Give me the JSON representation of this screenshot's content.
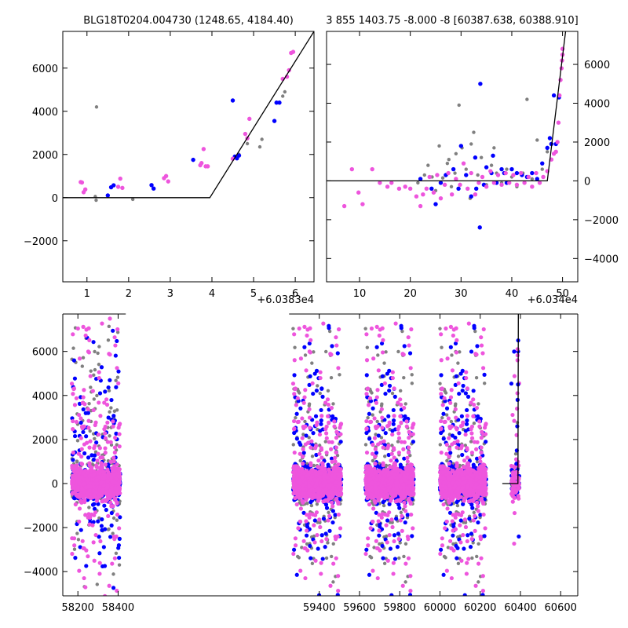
{
  "figure": {
    "panel_a_title": "BLG18T0204.004730 (1248.65, 4184.40)",
    "panel_b_title": "3 855 1403.75 -8.000 -8 [60387.638, 60388.910]",
    "panel_a_offset": "+6.0383e4",
    "panel_b_offset": "+6.034e4"
  },
  "colors": {
    "gray": "#808080",
    "blue": "#0000ff",
    "magenta": "#ee55dd",
    "model": "#000000"
  },
  "chart_data": [
    {
      "id": "panel_a",
      "type": "scatter",
      "title": "BLG18T0204.004730 (1248.65, 4184.40)",
      "x_offset_label": "+6.0383e4",
      "xlim": [
        0.42,
        6.45
      ],
      "ylim": [
        -3900,
        7700
      ],
      "xticks": [
        1,
        2,
        3,
        4,
        5,
        6
      ],
      "yticks": [
        -2000,
        0,
        2000,
        4000,
        6000
      ],
      "ytick_side": "left",
      "series": [
        {
          "color": "gray",
          "points": [
            [
              1.23,
              4200
            ],
            [
              1.2,
              50
            ],
            [
              1.22,
              -120
            ],
            [
              2.1,
              -80
            ],
            [
              4.65,
              2000
            ],
            [
              4.85,
              2500
            ],
            [
              5.2,
              2700
            ],
            [
              5.15,
              2350
            ],
            [
              5.75,
              4900
            ],
            [
              5.7,
              4700
            ]
          ]
        },
        {
          "color": "blue",
          "points": [
            [
              1.5,
              100
            ],
            [
              1.58,
              480
            ],
            [
              1.64,
              570
            ],
            [
              2.55,
              580
            ],
            [
              2.6,
              420
            ],
            [
              3.55,
              1750
            ],
            [
              4.5,
              4500
            ],
            [
              4.55,
              1900
            ],
            [
              4.65,
              1950
            ],
            [
              4.6,
              1820
            ],
            [
              5.5,
              3550
            ],
            [
              5.55,
              4400
            ],
            [
              5.62,
              4400
            ]
          ]
        },
        {
          "color": "magenta",
          "points": [
            [
              0.85,
              720
            ],
            [
              0.88,
              700
            ],
            [
              0.92,
              250
            ],
            [
              0.96,
              380
            ],
            [
              1.75,
              500
            ],
            [
              1.8,
              880
            ],
            [
              1.85,
              450
            ],
            [
              2.85,
              900
            ],
            [
              2.9,
              1000
            ],
            [
              2.95,
              750
            ],
            [
              3.8,
              2250
            ],
            [
              3.75,
              1600
            ],
            [
              3.85,
              1450
            ],
            [
              3.9,
              1450
            ],
            [
              4.8,
              2950
            ],
            [
              4.85,
              2750
            ],
            [
              4.9,
              3650
            ],
            [
              5.7,
              5500
            ],
            [
              5.8,
              5600
            ],
            [
              5.85,
              5900
            ],
            [
              5.9,
              6700
            ],
            [
              5.95,
              6750
            ],
            [
              4.5,
              1800
            ],
            [
              3.72,
              1500
            ]
          ]
        }
      ],
      "model": [
        [
          0.42,
          0
        ],
        [
          3.95,
          0
        ],
        [
          6.45,
          7700
        ]
      ]
    },
    {
      "id": "panel_b",
      "type": "scatter",
      "title": "3 855 1403.75 -8.000 -8 [60387.638, 60388.910]",
      "x_offset_label": "+6.034e4",
      "xlim": [
        3.5,
        53.0
      ],
      "ylim": [
        -5200,
        7700
      ],
      "xticks": [
        10,
        20,
        30,
        40,
        50
      ],
      "yticks": [
        -4000,
        -2000,
        0,
        2000,
        4000,
        6000
      ],
      "ytick_side": "right",
      "series": [
        {
          "color": "gray",
          "points": [
            [
              21.5,
              -100
            ],
            [
              22.8,
              300
            ],
            [
              23.5,
              800
            ],
            [
              24.3,
              200
            ],
            [
              25.0,
              -500
            ],
            [
              25.7,
              1800
            ],
            [
              26.4,
              150
            ],
            [
              27.3,
              900
            ],
            [
              28.1,
              -300
            ],
            [
              28.8,
              400
            ],
            [
              29.6,
              3900
            ],
            [
              30.2,
              1700
            ],
            [
              31.0,
              600
            ],
            [
              31.8,
              -900
            ],
            [
              32.5,
              2500
            ],
            [
              33.3,
              300
            ],
            [
              34.0,
              1200
            ],
            [
              35.0,
              -200
            ],
            [
              36.0,
              800
            ],
            [
              37.0,
              400
            ],
            [
              38.0,
              -100
            ],
            [
              39.0,
              600
            ],
            [
              40.0,
              200
            ],
            [
              41.0,
              -300
            ],
            [
              42.2,
              400
            ],
            [
              43.0,
              4200
            ],
            [
              44.0,
              100
            ],
            [
              45.0,
              2100
            ],
            [
              46.0,
              600
            ],
            [
              47.0,
              1500
            ],
            [
              27.6,
              1100
            ],
            [
              32.0,
              1900
            ],
            [
              29.0,
              1400
            ],
            [
              36.5,
              1700
            ]
          ]
        },
        {
          "color": "blue",
          "points": [
            [
              22.0,
              100
            ],
            [
              24.2,
              -400
            ],
            [
              25.0,
              -1200
            ],
            [
              26.0,
              -100
            ],
            [
              27.0,
              300
            ],
            [
              28.5,
              600
            ],
            [
              29.5,
              -400
            ],
            [
              30.0,
              1800
            ],
            [
              31.0,
              300
            ],
            [
              32.0,
              -800
            ],
            [
              33.0,
              -400
            ],
            [
              33.8,
              5000
            ],
            [
              33.7,
              -2400
            ],
            [
              34.5,
              -200
            ],
            [
              35.0,
              700
            ],
            [
              36.0,
              400
            ],
            [
              37.0,
              -100
            ],
            [
              38.0,
              600
            ],
            [
              38.5,
              400
            ],
            [
              39.0,
              -100
            ],
            [
              40.0,
              600
            ],
            [
              41.0,
              400
            ],
            [
              42.0,
              300
            ],
            [
              43.0,
              200
            ],
            [
              44.0,
              400
            ],
            [
              45.0,
              100
            ],
            [
              46.0,
              900
            ],
            [
              47.0,
              1700
            ],
            [
              47.5,
              2200
            ],
            [
              47.8,
              1900
            ],
            [
              48.3,
              4400
            ],
            [
              48.7,
              1900
            ],
            [
              49.3,
              4300
            ],
            [
              32.8,
              1200
            ],
            [
              36.3,
              1300
            ]
          ]
        },
        {
          "color": "magenta",
          "points": [
            [
              7.0,
              -1300
            ],
            [
              8.5,
              600
            ],
            [
              9.8,
              -600
            ],
            [
              10.6,
              -1200
            ],
            [
              12.5,
              600
            ],
            [
              14.0,
              -100
            ],
            [
              15.5,
              -300
            ],
            [
              16.3,
              -100
            ],
            [
              17.8,
              -400
            ],
            [
              19.0,
              -300
            ],
            [
              20.0,
              -400
            ],
            [
              21.2,
              -800
            ],
            [
              22.0,
              -1300
            ],
            [
              22.5,
              -700
            ],
            [
              23.2,
              -400
            ],
            [
              23.8,
              200
            ],
            [
              24.6,
              -600
            ],
            [
              25.3,
              300
            ],
            [
              26.0,
              -900
            ],
            [
              26.8,
              -200
            ],
            [
              27.5,
              400
            ],
            [
              28.2,
              -700
            ],
            [
              29.0,
              100
            ],
            [
              29.8,
              -200
            ],
            [
              30.5,
              900
            ],
            [
              31.3,
              -400
            ],
            [
              32.0,
              400
            ],
            [
              32.8,
              -700
            ],
            [
              33.5,
              -100
            ],
            [
              34.2,
              200
            ],
            [
              35.0,
              -300
            ],
            [
              35.8,
              500
            ],
            [
              36.5,
              -100
            ],
            [
              37.3,
              300
            ],
            [
              38.0,
              -200
            ],
            [
              38.8,
              400
            ],
            [
              39.5,
              -100
            ],
            [
              40.3,
              300
            ],
            [
              41.0,
              -200
            ],
            [
              41.8,
              400
            ],
            [
              42.5,
              -100
            ],
            [
              43.3,
              200
            ],
            [
              44.0,
              -300
            ],
            [
              44.8,
              400
            ],
            [
              45.5,
              -100
            ],
            [
              46.2,
              200
            ],
            [
              47.0,
              500
            ],
            [
              47.8,
              1100
            ],
            [
              48.3,
              1400
            ],
            [
              48.7,
              1500
            ],
            [
              49.0,
              2000
            ],
            [
              49.2,
              3000
            ],
            [
              49.4,
              4400
            ],
            [
              49.6,
              5200
            ],
            [
              49.8,
              5800
            ],
            [
              49.9,
              6200
            ],
            [
              50.0,
              6500
            ],
            [
              50.0,
              6800
            ]
          ]
        }
      ],
      "model": [
        [
          3.5,
          0
        ],
        [
          47.0,
          0
        ],
        [
          50.6,
          7700
        ]
      ]
    },
    {
      "id": "panel_c",
      "type": "scatter",
      "title": "",
      "xlim": [
        58125,
        60685
      ],
      "ylim": [
        -5100,
        7700
      ],
      "xticks": [
        58200,
        58400,
        59400,
        59600,
        59800,
        60000,
        60200,
        60400,
        60600
      ],
      "yticks": [
        -4000,
        -2000,
        0,
        2000,
        4000,
        6000
      ],
      "ytick_side": "left",
      "broken_axis_gap": [
        58438,
        59250
      ],
      "seasons": [
        {
          "x0": 58170,
          "x1": 58410,
          "color": "magenta",
          "dense": true
        },
        {
          "x0": 59270,
          "x1": 59510,
          "color": "magenta",
          "dense": true
        },
        {
          "x0": 59630,
          "x1": 59870,
          "color": "magenta",
          "dense": true
        },
        {
          "x0": 60000,
          "x1": 60230,
          "color": "magenta",
          "dense": true
        },
        {
          "x0": 60355,
          "x1": 60395,
          "color": "magenta",
          "dense": false
        }
      ],
      "model": [
        [
          60310,
          0
        ],
        [
          60387.6,
          0
        ],
        [
          60389.5,
          7700
        ]
      ]
    }
  ]
}
